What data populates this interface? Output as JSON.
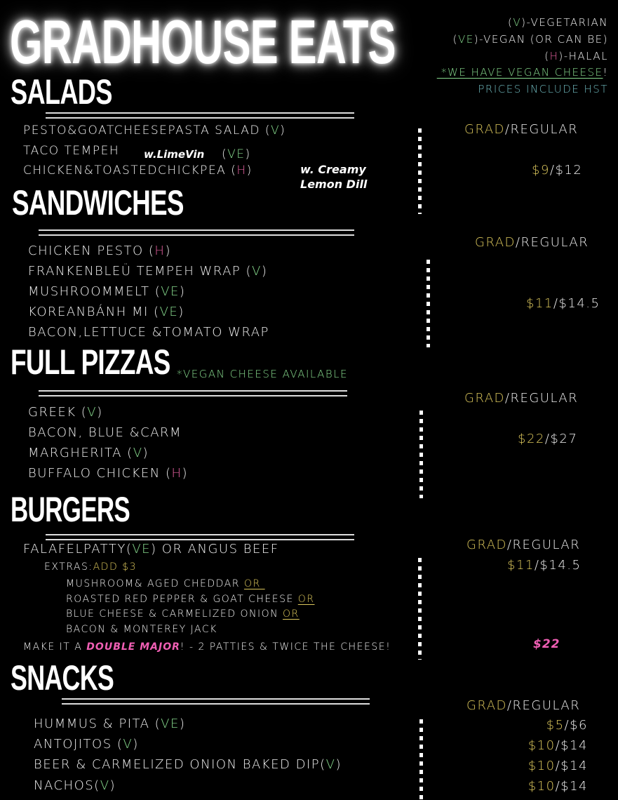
{
  "colors": {
    "white": "#f2f2f2",
    "yellow": "#dcc75c",
    "green": "#86d88c",
    "pink": "#e4609f",
    "teal": "#6fb9bd",
    "hotpink": "#f05fb4"
  },
  "title": "GRADHOUSE EATS",
  "legend": [
    [
      {
        "text": "(",
        "c": "white"
      },
      {
        "text": "V",
        "c": "green"
      },
      {
        "text": ")-VEGETARIAN",
        "c": "white"
      }
    ],
    [
      {
        "text": "(",
        "c": "white"
      },
      {
        "text": "VE",
        "c": "green"
      },
      {
        "text": ")-VEGAN (OR CAN BE)",
        "c": "white"
      }
    ],
    [
      {
        "text": "(",
        "c": "white"
      },
      {
        "text": "H",
        "c": "pink"
      },
      {
        "text": ")-HALAL",
        "c": "white"
      }
    ],
    [
      {
        "text": " *WE HAVE VEGAN CHEESE",
        "c": "green",
        "u": true
      },
      {
        "text": "!",
        "c": "white"
      }
    ],
    [
      {
        "text": "PRICES INCLUDE HST",
        "c": "teal"
      }
    ]
  ],
  "sections": {
    "salads": {
      "heading": "SALADS",
      "items": [
        [
          {
            "text": "PESTO&GOATCHEESEPASTA SALAD (",
            "c": "white"
          },
          {
            "text": "V",
            "c": "green"
          },
          {
            "text": ")",
            "c": "white"
          }
        ],
        [
          {
            "text": "TACO TEMPEH",
            "c": "white"
          }
        ],
        [
          {
            "text": "CHICKEN&TOASTEDCHICKPEA (",
            "c": "white"
          },
          {
            "text": "H",
            "c": "pink"
          },
          {
            "text": ")",
            "c": "white"
          }
        ]
      ],
      "notes": {
        "lime": "w.LimeVin",
        "lime_tag": [
          {
            "text": "(",
            "c": "white"
          },
          {
            "text": "VE",
            "c": "green"
          },
          {
            "text": ")",
            "c": "white"
          }
        ],
        "creamy1": "w. Creamy",
        "creamy2": "Lemon Dill"
      },
      "price_header": [
        {
          "text": "GRAD",
          "c": "yellow"
        },
        {
          "text": "/REGULAR",
          "c": "white"
        }
      ],
      "prices": [
        [
          {
            "text": "$9",
            "c": "yellow"
          },
          {
            "text": "/$12",
            "c": "white"
          }
        ]
      ]
    },
    "sandwiches": {
      "heading": "SANDWICHES",
      "items": [
        [
          {
            "text": "CHICKEN PESTO (",
            "c": "white"
          },
          {
            "text": "H",
            "c": "pink"
          },
          {
            "text": ")",
            "c": "white"
          }
        ],
        [
          {
            "text": "FRANKENBLEÜ TEMPEH WRAP (",
            "c": "white"
          },
          {
            "text": "V",
            "c": "green"
          },
          {
            "text": ")",
            "c": "white"
          }
        ],
        [
          {
            "text": "MUSHROOMMELT (",
            "c": "white"
          },
          {
            "text": "VE",
            "c": "green"
          },
          {
            "text": ")",
            "c": "white"
          }
        ],
        [
          {
            "text": "KOREANBÁNH MI (",
            "c": "white"
          },
          {
            "text": "VE",
            "c": "green"
          },
          {
            "text": ")",
            "c": "white"
          }
        ],
        [
          {
            "text": "BACON,LETTUCE &TOMATO WRAP",
            "c": "white"
          }
        ]
      ],
      "price_header": [
        {
          "text": "GRAD",
          "c": "yellow"
        },
        {
          "text": "/REGULAR",
          "c": "white"
        }
      ],
      "prices": [
        [
          {
            "text": "$11",
            "c": "yellow"
          },
          {
            "text": "/$14.5",
            "c": "white"
          }
        ]
      ]
    },
    "pizzas": {
      "heading": "FULL PIZZAS",
      "note": "*VEGAN CHEESE AVAILABLE",
      "items": [
        [
          {
            "text": "GREEK (",
            "c": "white"
          },
          {
            "text": "V",
            "c": "green"
          },
          {
            "text": ")",
            "c": "white"
          }
        ],
        [
          {
            "text": "BACON, BLUE &CARM",
            "c": "white"
          }
        ],
        [
          {
            "text": "MARGHERITA (",
            "c": "white"
          },
          {
            "text": "V",
            "c": "green"
          },
          {
            "text": ")",
            "c": "white"
          }
        ],
        [
          {
            "text": "BUFFALO CHICKEN (",
            "c": "white"
          },
          {
            "text": "H",
            "c": "pink"
          },
          {
            "text": ")",
            "c": "white"
          }
        ]
      ],
      "price_header": [
        {
          "text": "GRAD",
          "c": "yellow"
        },
        {
          "text": "/REGULAR",
          "c": "white"
        }
      ],
      "prices": [
        [
          {
            "text": "$22",
            "c": "yellow"
          },
          {
            "text": "/$27",
            "c": "white"
          }
        ]
      ]
    },
    "burgers": {
      "heading": "BURGERS",
      "items": [
        [
          {
            "text": "FALAFELPATTY(",
            "c": "white"
          },
          {
            "text": "VE",
            "c": "green"
          },
          {
            "text": ") OR ANGUS BEEF",
            "c": "white"
          }
        ],
        [
          {
            "text": "EXTRAS:",
            "c": "white"
          },
          {
            "text": "ADD $3",
            "c": "yellow"
          }
        ],
        [
          {
            "text": "MUSHROOM& AGED CHEDDAR ",
            "c": "white"
          },
          {
            "text": "OR ",
            "c": "yellow",
            "u": true
          }
        ],
        [
          {
            "text": "ROASTED RED PEPPER & GOAT CHEESE ",
            "c": "white"
          },
          {
            "text": "OR",
            "c": "yellow",
            "u": true
          }
        ],
        [
          {
            "text": "BLUE CHEESE & CARMELIZED ONION ",
            "c": "white"
          },
          {
            "text": "OR",
            "c": "yellow",
            "u": true
          }
        ],
        [
          {
            "text": "BACON & MONTEREY JACK",
            "c": "white"
          }
        ],
        [
          {
            "text": "MAKE IT A ",
            "c": "white"
          },
          {
            "text": "DOUBLE MAJOR",
            "c": "hotpink",
            "bi": true
          },
          {
            "text": "! - 2 PATTIES & TWICE THE CHEESE!",
            "c": "white"
          }
        ]
      ],
      "price_header": [
        {
          "text": "GRAD",
          "c": "yellow"
        },
        {
          "text": "/REGULAR",
          "c": "white"
        }
      ],
      "prices": [
        [
          {
            "text": "$11",
            "c": "yellow"
          },
          {
            "text": "/$14.5",
            "c": "white"
          }
        ],
        [
          {
            "text": "$22",
            "c": "hotpink",
            "bi": true
          }
        ]
      ]
    },
    "snacks": {
      "heading": "SNACKS",
      "items": [
        [
          {
            "text": "HUMMUS & PITA (",
            "c": "white"
          },
          {
            "text": "VE",
            "c": "green"
          },
          {
            "text": ")",
            "c": "white"
          }
        ],
        [
          {
            "text": "ANTOJITOS (",
            "c": "white"
          },
          {
            "text": "V",
            "c": "green"
          },
          {
            "text": ")",
            "c": "white"
          }
        ],
        [
          {
            "text": "BEER & CARMELIZED ONION BAKED DIP(",
            "c": "white"
          },
          {
            "text": "V",
            "c": "green"
          },
          {
            "text": ")",
            "c": "white"
          }
        ],
        [
          {
            "text": "NACHOS(",
            "c": "white"
          },
          {
            "text": "V",
            "c": "green"
          },
          {
            "text": ")",
            "c": "white"
          }
        ]
      ],
      "price_header": [
        {
          "text": "GRAD",
          "c": "yellow"
        },
        {
          "text": "/REGULAR",
          "c": "white"
        }
      ],
      "prices": [
        [
          {
            "text": "$5",
            "c": "yellow"
          },
          {
            "text": "/$6",
            "c": "white"
          }
        ],
        [
          {
            "text": "$10",
            "c": "yellow"
          },
          {
            "text": "/$14",
            "c": "white"
          }
        ],
        [
          {
            "text": "$10",
            "c": "yellow"
          },
          {
            "text": "/$14",
            "c": "white"
          }
        ],
        [
          {
            "text": "$10",
            "c": "yellow"
          },
          {
            "text": "/$14",
            "c": "white"
          }
        ]
      ]
    }
  }
}
